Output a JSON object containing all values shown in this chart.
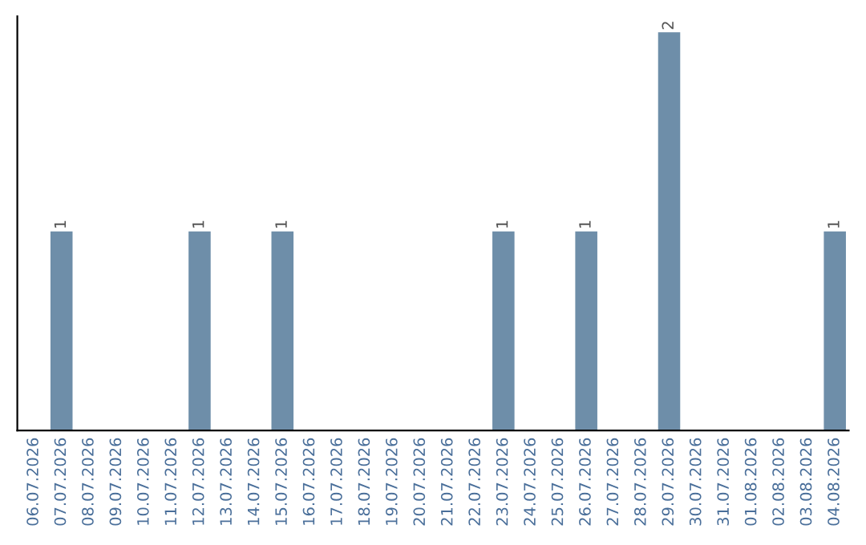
{
  "chart_data": {
    "type": "bar",
    "categories": [
      "06.07.2026",
      "07.07.2026",
      "08.07.2026",
      "09.07.2026",
      "10.07.2026",
      "11.07.2026",
      "12.07.2026",
      "13.07.2026",
      "14.07.2026",
      "15.07.2026",
      "16.07.2026",
      "17.07.2026",
      "18.07.2026",
      "19.07.2026",
      "20.07.2026",
      "21.07.2026",
      "22.07.2026",
      "23.07.2026",
      "24.07.2026",
      "25.07.2026",
      "26.07.2026",
      "27.07.2026",
      "28.07.2026",
      "29.07.2026",
      "30.07.2026",
      "31.07.2026",
      "01.08.2026",
      "02.08.2026",
      "03.08.2026",
      "04.08.2026"
    ],
    "values": [
      0,
      1,
      0,
      0,
      0,
      0,
      1,
      0,
      0,
      1,
      0,
      0,
      0,
      0,
      0,
      0,
      0,
      1,
      0,
      0,
      1,
      0,
      0,
      2,
      0,
      0,
      0,
      0,
      0,
      1
    ],
    "value_labels": [
      null,
      "1",
      null,
      null,
      null,
      null,
      "1",
      null,
      null,
      "1",
      null,
      null,
      null,
      null,
      null,
      null,
      null,
      "1",
      null,
      null,
      "1",
      null,
      null,
      "2",
      null,
      null,
      null,
      null,
      null,
      "1"
    ],
    "color": "#6e8ea9",
    "tick_labels": "x",
    "grid": false,
    "legend": false
  }
}
